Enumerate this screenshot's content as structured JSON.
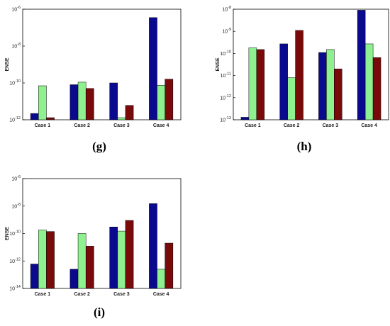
{
  "colors": {
    "series1": "#0a0a8e",
    "series2": "#8ef08e",
    "series3": "#7a0a0a"
  },
  "chart_data": [
    {
      "type": "bar",
      "panel_label": "(g)",
      "ylabel": "ENSE",
      "yscale": "log",
      "ylim_exp": [
        -12,
        -6
      ],
      "tick_exps": [
        -12,
        -10,
        -8,
        -6
      ],
      "categories": [
        "Case 1",
        "Case 2",
        "Case 3",
        "Case 4"
      ],
      "series": [
        {
          "values": [
            2.2e-12,
            8e-11,
            1e-10,
            3.5e-07
          ]
        },
        {
          "values": [
            7e-11,
            1.1e-10,
            1.3e-12,
            7.5e-11
          ]
        },
        {
          "values": [
            1.3e-12,
            5e-11,
            6e-12,
            1.6e-10
          ]
        }
      ]
    },
    {
      "type": "bar",
      "panel_label": "(h)",
      "ylabel": "ENSE",
      "yscale": "log",
      "ylim_exp": [
        -13,
        -8
      ],
      "tick_exps": [
        -13,
        -12,
        -11,
        -10,
        -9,
        -8
      ],
      "categories": [
        "Case 1",
        "Case 2",
        "Case 3",
        "Case 4"
      ],
      "series": [
        {
          "values": [
            1.3e-13,
            2.7e-10,
            1.1e-10,
            9e-09
          ]
        },
        {
          "values": [
            1.8e-10,
            8e-12,
            1.5e-10,
            2.7e-10
          ]
        },
        {
          "values": [
            1.5e-10,
            1.1e-09,
            2e-11,
            6.5e-11
          ]
        }
      ]
    },
    {
      "type": "bar",
      "panel_label": "(i)",
      "ylabel": "ENSE",
      "yscale": "log",
      "ylim_exp": [
        -14,
        -6
      ],
      "tick_exps": [
        -14,
        -12,
        -10,
        -8,
        -6
      ],
      "categories": [
        "Case 1",
        "Case 2",
        "Case 3",
        "Case 4"
      ],
      "series": [
        {
          "values": [
            6e-13,
            2.5e-13,
            3e-10,
            1.5e-08
          ]
        },
        {
          "values": [
            1.8e-10,
            1e-10,
            1.5e-10,
            2.5e-13
          ]
        },
        {
          "values": [
            1.4e-10,
            1.2e-11,
            9e-10,
            2e-11
          ]
        }
      ]
    }
  ]
}
